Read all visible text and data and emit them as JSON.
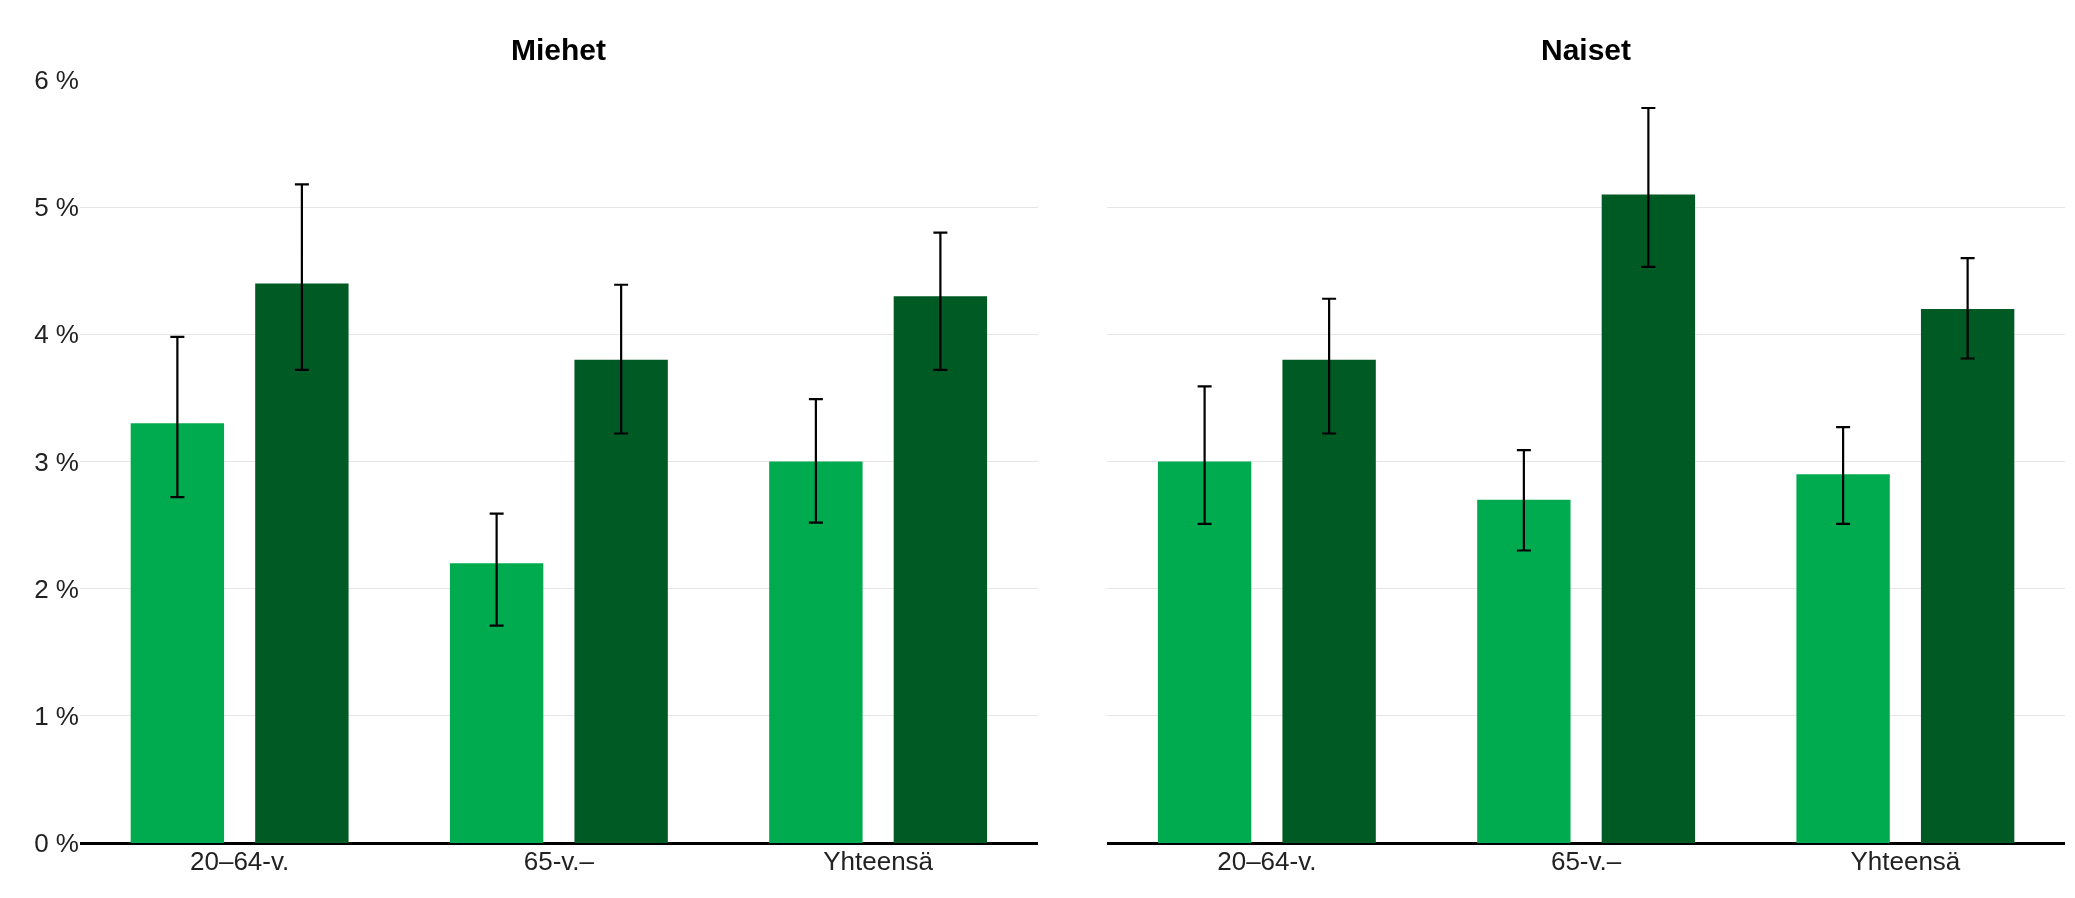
{
  "chart_data": [
    {
      "type": "bar",
      "title": "Miehet",
      "categories": [
        "20–64-v.",
        "65-v.–",
        "Yhteensä"
      ],
      "series": [
        {
          "color": "#00ab4f",
          "values": [
            3.3,
            2.2,
            3.0
          ],
          "errors": [
            [
              2.72,
              3.98
            ],
            [
              1.71,
              2.59
            ],
            [
              2.52,
              3.49
            ]
          ]
        },
        {
          "color": "#005a23",
          "values": [
            4.4,
            3.8,
            4.3
          ],
          "errors": [
            [
              3.72,
              5.18
            ],
            [
              3.22,
              4.39
            ],
            [
              3.72,
              4.8
            ]
          ]
        }
      ],
      "ylim": [
        0,
        6
      ],
      "yticks": [
        {
          "value": 0,
          "label": "0 %"
        },
        {
          "value": 1,
          "label": "1 %"
        },
        {
          "value": 2,
          "label": "2 %"
        },
        {
          "value": 3,
          "label": "3 %"
        },
        {
          "value": 4,
          "label": "4 %"
        },
        {
          "value": 5,
          "label": "5 %"
        },
        {
          "value": 6,
          "label": "6 %"
        }
      ],
      "grid": "y"
    },
    {
      "type": "bar",
      "title": "Naiset",
      "categories": [
        "20–64-v.",
        "65-v.–",
        "Yhteensä"
      ],
      "series": [
        {
          "color": "#00ab4f",
          "values": [
            3.0,
            2.7,
            2.9
          ],
          "errors": [
            [
              2.51,
              3.59
            ],
            [
              2.3,
              3.09
            ],
            [
              2.51,
              3.27
            ]
          ]
        },
        {
          "color": "#005a23",
          "values": [
            3.8,
            5.1,
            4.2
          ],
          "errors": [
            [
              3.22,
              4.28
            ],
            [
              4.53,
              5.78
            ],
            [
              3.81,
              4.6
            ]
          ]
        }
      ],
      "ylim": [
        0,
        6
      ],
      "yticks": [
        0,
        1,
        2,
        3,
        4,
        5,
        6
      ],
      "tick_labels": "x",
      "grid": "y"
    }
  ]
}
